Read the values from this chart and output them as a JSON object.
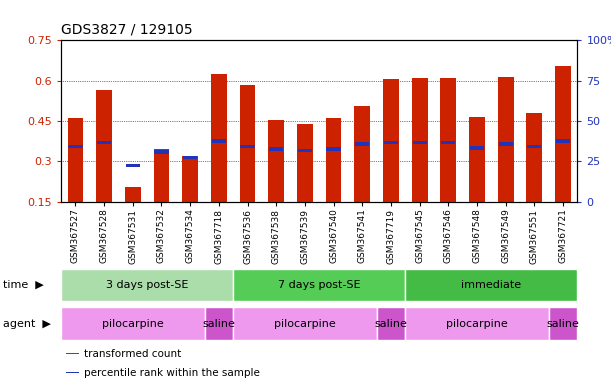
{
  "title": "GDS3827 / 129105",
  "samples": [
    "GSM367527",
    "GSM367528",
    "GSM367531",
    "GSM367532",
    "GSM367534",
    "GSM367718",
    "GSM367536",
    "GSM367538",
    "GSM367539",
    "GSM367540",
    "GSM367541",
    "GSM367719",
    "GSM367545",
    "GSM367546",
    "GSM367548",
    "GSM367549",
    "GSM367551",
    "GSM367721"
  ],
  "bar_heights": [
    0.46,
    0.565,
    0.205,
    0.345,
    0.32,
    0.625,
    0.585,
    0.455,
    0.44,
    0.46,
    0.505,
    0.605,
    0.61,
    0.61,
    0.465,
    0.615,
    0.48,
    0.655
  ],
  "blue_positions": [
    0.355,
    0.37,
    0.285,
    0.335,
    0.315,
    0.375,
    0.355,
    0.345,
    0.34,
    0.345,
    0.365,
    0.37,
    0.37,
    0.37,
    0.35,
    0.365,
    0.355,
    0.375
  ],
  "bar_color": "#cc2200",
  "blue_color": "#2233bb",
  "ylim_left": [
    0.15,
    0.75
  ],
  "ylim_right": [
    0.0,
    100.0
  ],
  "yticks_left": [
    0.15,
    0.3,
    0.45,
    0.6,
    0.75
  ],
  "yticks_right": [
    0,
    25,
    50,
    75,
    100
  ],
  "time_groups": [
    {
      "label": "3 days post-SE",
      "start": 0,
      "end": 6,
      "color": "#aaddaa"
    },
    {
      "label": "7 days post-SE",
      "start": 6,
      "end": 12,
      "color": "#55cc55"
    },
    {
      "label": "immediate",
      "start": 12,
      "end": 18,
      "color": "#44bb44"
    }
  ],
  "agent_groups": [
    {
      "label": "pilocarpine",
      "start": 0,
      "end": 5,
      "color": "#ee99ee"
    },
    {
      "label": "saline",
      "start": 5,
      "end": 6,
      "color": "#cc55cc"
    },
    {
      "label": "pilocarpine",
      "start": 6,
      "end": 11,
      "color": "#ee99ee"
    },
    {
      "label": "saline",
      "start": 11,
      "end": 12,
      "color": "#cc55cc"
    },
    {
      "label": "pilocarpine",
      "start": 12,
      "end": 17,
      "color": "#ee99ee"
    },
    {
      "label": "saline",
      "start": 17,
      "end": 18,
      "color": "#cc55cc"
    }
  ],
  "legend_items": [
    {
      "label": "transformed count",
      "color": "#cc2200"
    },
    {
      "label": "percentile rank within the sample",
      "color": "#2233bb"
    }
  ],
  "time_label": "time",
  "agent_label": "agent",
  "background_color": "#ffffff",
  "bar_width": 0.55
}
